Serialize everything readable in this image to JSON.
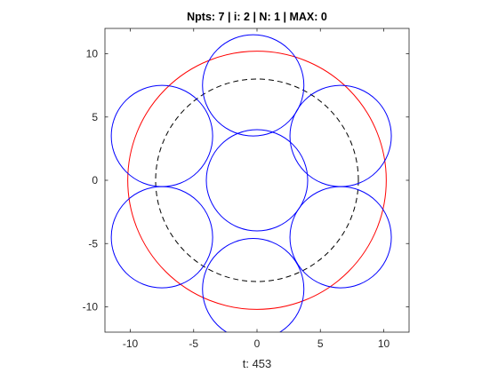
{
  "chart_data": {
    "type": "line",
    "title": "Npts: 7 | i: 2 | N: 1 | MAX: 0",
    "xlabel": "t: 453",
    "ylabel": "",
    "xlim": [
      -12,
      12
    ],
    "ylim": [
      -12,
      12
    ],
    "xticks": [
      -10,
      -5,
      0,
      5,
      10
    ],
    "yticks": [
      -10,
      -5,
      0,
      5,
      10
    ],
    "grid": false,
    "legend": "none",
    "colors": {
      "blue_circles": "#0000ff",
      "red_circle": "#ff0000",
      "dashed_circle": "#000000",
      "axes": "#262626"
    },
    "series": [
      {
        "kind": "circle",
        "style": "solid",
        "color": "#ff0000",
        "center": [
          0,
          0
        ],
        "radius": 10.2
      },
      {
        "kind": "circle",
        "style": "dashed",
        "color": "#000000",
        "center": [
          0,
          0
        ],
        "radius": 8
      },
      {
        "kind": "circles",
        "style": "solid",
        "color": "#0000ff",
        "radius": 4,
        "centers": [
          [
            0,
            0
          ],
          [
            -0.3,
            7.5
          ],
          [
            -7.5,
            3.5
          ],
          [
            6.6,
            3.5
          ],
          [
            -7.5,
            -4.5
          ],
          [
            6.6,
            -4.5
          ],
          [
            -0.3,
            -8.6
          ]
        ]
      }
    ]
  }
}
